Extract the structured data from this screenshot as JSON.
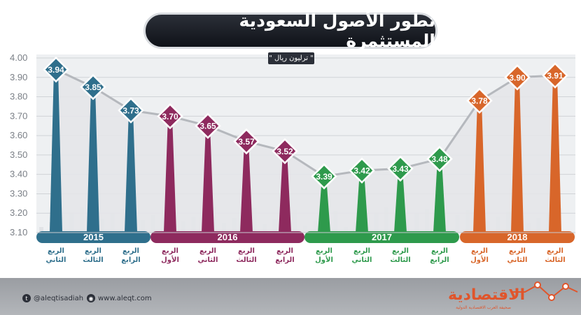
{
  "title": "تطور الأصول السعودية المستثمرة",
  "unit": "\" ترليون ريال \"",
  "footer": {
    "twitter": "@aleqtisadiah",
    "website": "www.aleqt.com",
    "brand": "الاقتصادية",
    "brand_sub": "صحيفة العرب الاقتصادية الدولية"
  },
  "colors": {
    "2015": "#2f6f8c",
    "2016": "#8e2a5e",
    "2017": "#2e9a4c",
    "2018": "#d8662a"
  },
  "chart_data": {
    "type": "line",
    "title": "تطور الأصول السعودية المستثمرة",
    "ylabel": "ترليون ريال",
    "ylim": [
      3.1,
      4.0
    ],
    "yticks": [
      "4.00",
      "3.90",
      "3.80",
      "3.70",
      "3.60",
      "3.50",
      "3.40",
      "3.30",
      "3.20",
      "3.10"
    ],
    "points": [
      {
        "year": "2015",
        "quarter": "الربع الثاني",
        "value": 3.94,
        "label": "3.94"
      },
      {
        "year": "2015",
        "quarter": "الربع الثالث",
        "value": 3.85,
        "label": "3.85"
      },
      {
        "year": "2015",
        "quarter": "الربع الرابع",
        "value": 3.73,
        "label": "3.73"
      },
      {
        "year": "2016",
        "quarter": "الربع الأول",
        "value": 3.7,
        "label": "3.70"
      },
      {
        "year": "2016",
        "quarter": "الربع الثاني",
        "value": 3.65,
        "label": "3.65"
      },
      {
        "year": "2016",
        "quarter": "الربع الثالث",
        "value": 3.57,
        "label": "3.57"
      },
      {
        "year": "2016",
        "quarter": "الربع الرابع",
        "value": 3.52,
        "label": "3.52"
      },
      {
        "year": "2017",
        "quarter": "الربع الأول",
        "value": 3.39,
        "label": "3.39"
      },
      {
        "year": "2017",
        "quarter": "الربع الثاني",
        "value": 3.42,
        "label": "3.42"
      },
      {
        "year": "2017",
        "quarter": "الربع الثالث",
        "value": 3.43,
        "label": "3.43"
      },
      {
        "year": "2017",
        "quarter": "الربع الرابع",
        "value": 3.48,
        "label": "3.48"
      },
      {
        "year": "2018",
        "quarter": "الربع الأول",
        "value": 3.78,
        "label": "3.78"
      },
      {
        "year": "2018",
        "quarter": "الربع الثاني",
        "value": 3.9,
        "label": "3.90"
      },
      {
        "year": "2018",
        "quarter": "الربع الثالث",
        "value": 3.91,
        "label": "3.91"
      }
    ],
    "years": [
      "2015",
      "2016",
      "2017",
      "2018"
    ]
  }
}
